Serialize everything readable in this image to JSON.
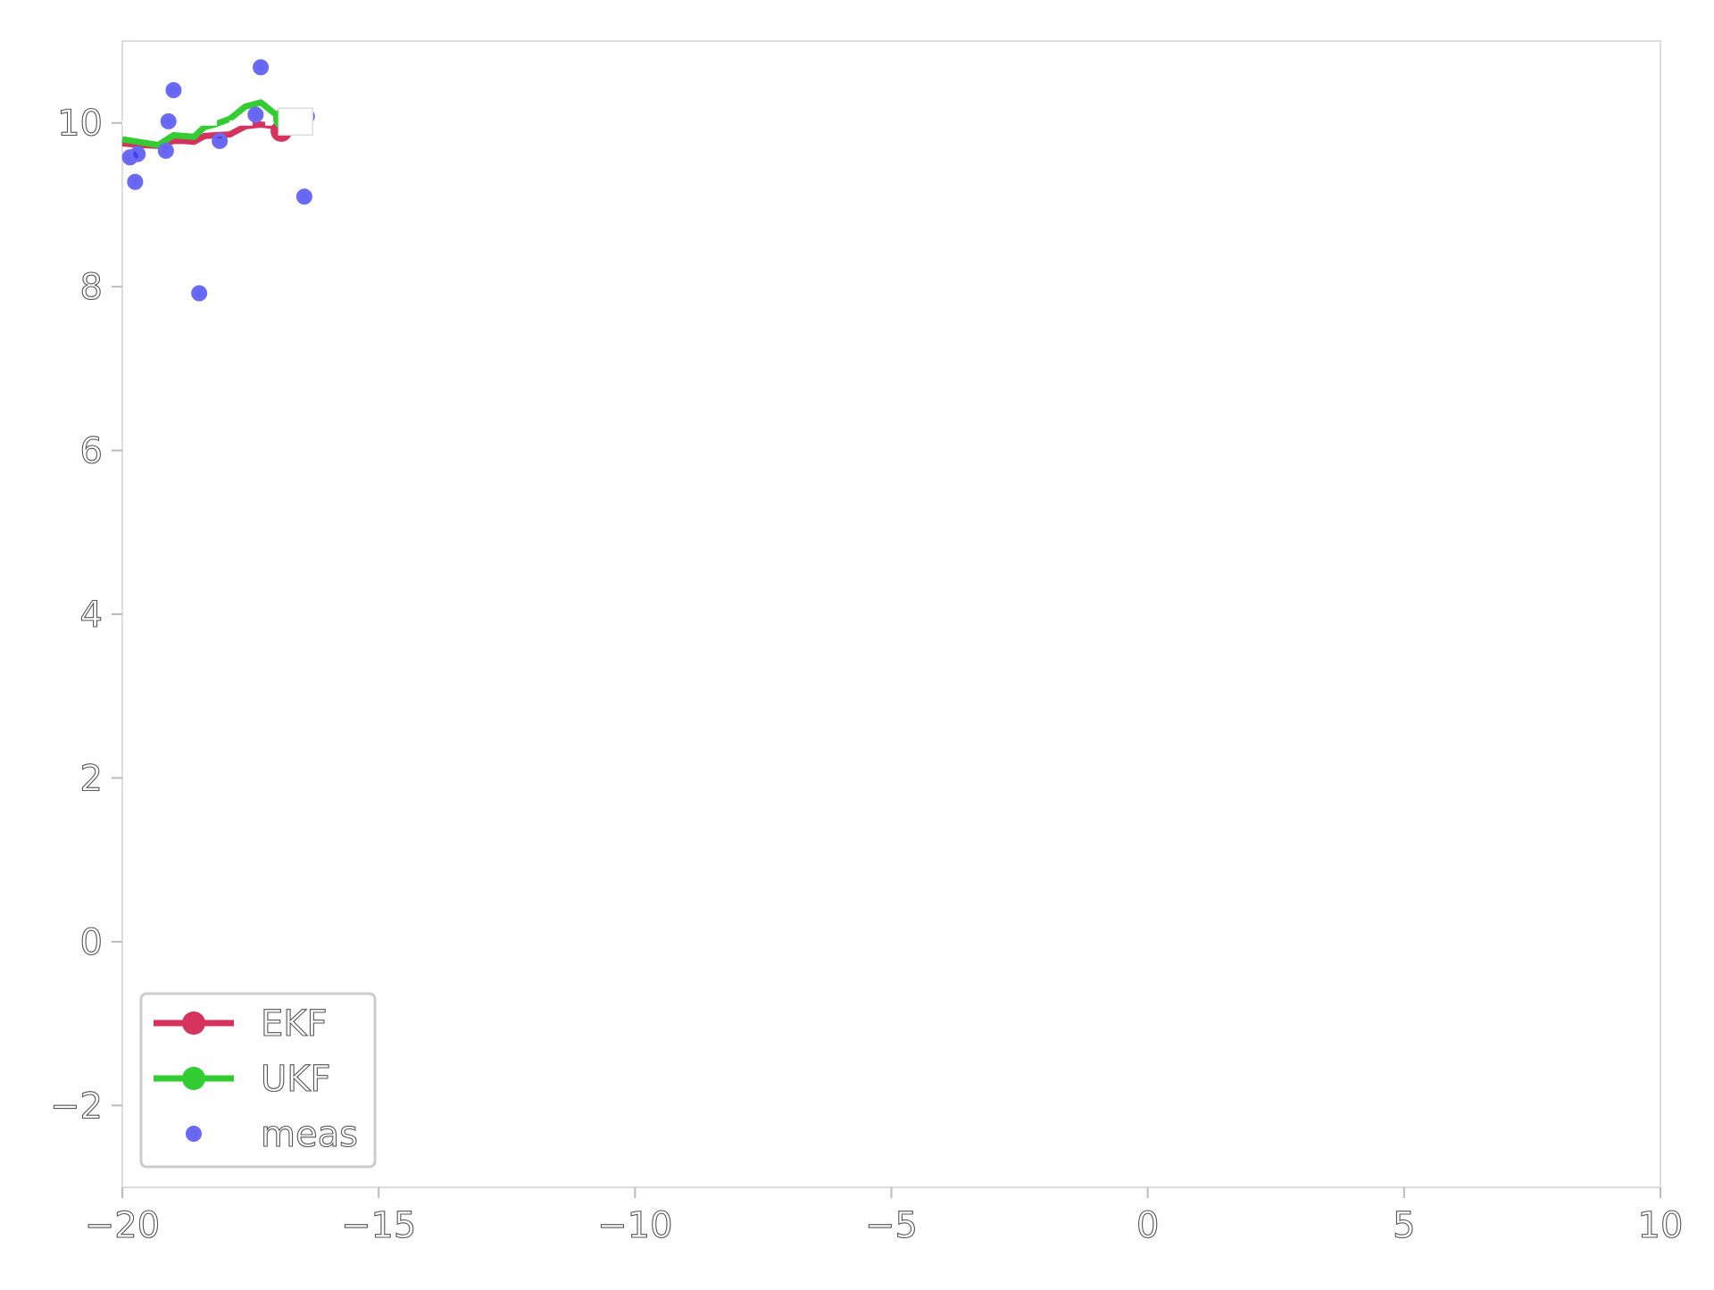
{
  "chart_data": {
    "type": "line",
    "title": "",
    "xlabel": "",
    "ylabel": "",
    "xlim": [
      -20,
      10
    ],
    "ylim": [
      -3,
      11
    ],
    "xticks": [
      -20,
      -15,
      -10,
      -5,
      0,
      5,
      10
    ],
    "xtick_labels": [
      "−20",
      "−15",
      "−10",
      "−5",
      "0",
      "5",
      "10"
    ],
    "yticks": [
      -2,
      0,
      2,
      4,
      6,
      8,
      10
    ],
    "ytick_labels": [
      "−2",
      "0",
      "2",
      "4",
      "6",
      "8",
      "10"
    ],
    "grid": false,
    "legend_position": "lower-left",
    "series": [
      {
        "name": "EKF",
        "kind": "line",
        "color": "#d6325e",
        "x": [
          -20,
          -19.6,
          -19.3,
          -19.0,
          -18.8,
          -18.6,
          -18.4,
          -18.2,
          -17.9,
          -17.6,
          -17.3,
          -17.0
        ],
        "y": [
          9.75,
          9.73,
          9.72,
          9.78,
          9.78,
          9.77,
          9.84,
          9.85,
          9.86,
          9.96,
          9.98,
          9.96
        ]
      },
      {
        "name": "UKF",
        "kind": "line",
        "color": "#33cc33",
        "x": [
          -20,
          -19.6,
          -19.3,
          -19.0,
          -18.8,
          -18.6,
          -18.4,
          -18.2,
          -17.9,
          -17.6,
          -17.3,
          -17.0
        ],
        "y": [
          9.8,
          9.76,
          9.73,
          9.85,
          9.84,
          9.83,
          9.95,
          9.98,
          10.05,
          10.2,
          10.25,
          10.1
        ]
      },
      {
        "name": "",
        "kind": "dashed-line",
        "color": "#ffffff",
        "x": [
          -20,
          -16.7
        ],
        "y": [
          10.0,
          10.0
        ]
      },
      {
        "name": "meas",
        "kind": "scatter",
        "color": "#3333ee",
        "x": [
          -19.85,
          -19.75,
          -19.7,
          -19.15,
          -19.1,
          -19.0,
          -18.5,
          -18.1,
          -17.4,
          -17.3,
          -16.4,
          -16.45
        ],
        "y": [
          9.58,
          9.28,
          9.62,
          9.66,
          10.02,
          10.4,
          7.92,
          9.78,
          10.1,
          10.68,
          10.08,
          9.1
        ]
      }
    ],
    "end_markers": [
      {
        "series": "EKF",
        "x": -16.9,
        "y": 9.9
      },
      {
        "series": "UKF",
        "x": -16.85,
        "y": 10.05
      }
    ]
  }
}
